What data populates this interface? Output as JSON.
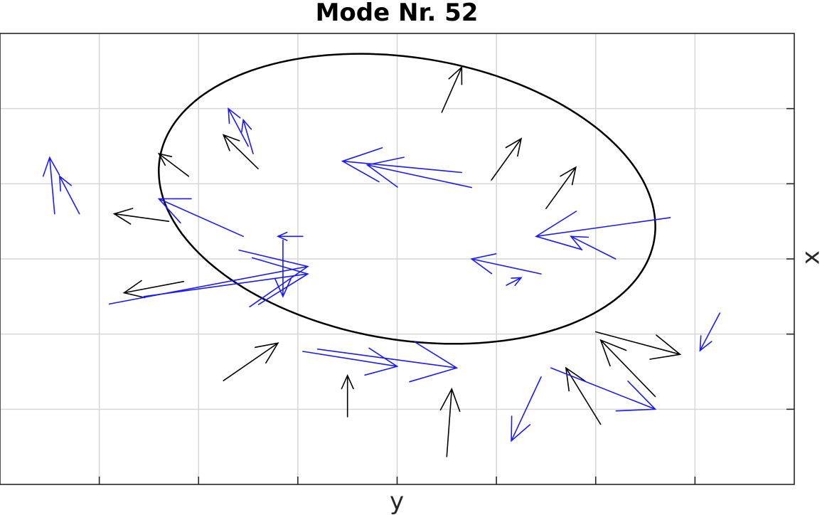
{
  "chart_data": {
    "type": "quiver",
    "title": "Mode Nr. 52",
    "xlabel": "y",
    "ylabel": "x",
    "ylabel_position": "right",
    "grid": true,
    "xlim": [
      0,
      8
    ],
    "ylim": [
      0,
      6
    ],
    "x_ticks": [
      0,
      1,
      2,
      3,
      4,
      5,
      6,
      7,
      8
    ],
    "y_ticks": [
      0,
      1,
      2,
      3,
      4,
      5,
      6
    ],
    "tick_labels_shown": false,
    "ellipse": {
      "center": [
        4.1,
        3.8
      ],
      "semi_axis_x": 2.56,
      "semi_axis_y": 1.85,
      "rotation_deg": -18,
      "color": "#000000"
    },
    "series": [
      {
        "name": "",
        "color": "#000000",
        "arrows": [
          [
            4.45,
            4.95,
            0.2,
            0.6
          ],
          [
            4.95,
            4.05,
            0.3,
            0.55
          ],
          [
            5.5,
            3.67,
            0.3,
            0.55
          ],
          [
            2.6,
            4.2,
            -0.35,
            0.45
          ],
          [
            1.9,
            4.1,
            -0.3,
            0.3
          ],
          [
            1.7,
            3.5,
            -0.55,
            0.1
          ],
          [
            1.85,
            2.7,
            -0.6,
            -0.15
          ],
          [
            2.25,
            1.38,
            0.55,
            0.5
          ],
          [
            3.5,
            0.9,
            0.0,
            0.55
          ],
          [
            4.5,
            0.37,
            0.05,
            0.9
          ],
          [
            6.05,
            0.8,
            -0.35,
            0.75
          ],
          [
            6.6,
            1.17,
            -0.55,
            0.75
          ],
          [
            6.0,
            2.03,
            0.85,
            -0.3
          ]
        ]
      },
      {
        "name": "",
        "color": "#1a1aff",
        "arrows": [
          [
            0.55,
            3.6,
            -0.05,
            0.75
          ],
          [
            0.8,
            3.6,
            -0.2,
            0.5
          ],
          [
            2.55,
            4.4,
            -0.1,
            0.45
          ],
          [
            2.5,
            4.5,
            -0.2,
            0.5
          ],
          [
            4.75,
            3.95,
            -1.05,
            0.3
          ],
          [
            4.65,
            4.15,
            -1.2,
            0.15
          ],
          [
            2.45,
            3.3,
            -0.85,
            0.5
          ],
          [
            3.05,
            3.3,
            -0.25,
            0.0
          ],
          [
            2.85,
            3.25,
            0.0,
            -0.75
          ],
          [
            1.1,
            2.4,
            2.0,
            0.5
          ],
          [
            1.45,
            2.5,
            1.65,
            0.3
          ],
          [
            3.05,
            1.77,
            0.95,
            -0.2
          ],
          [
            3.2,
            1.8,
            1.4,
            -0.25
          ],
          [
            6.75,
            3.55,
            -1.35,
            -0.25
          ],
          [
            6.2,
            3.0,
            -0.45,
            0.3
          ],
          [
            5.45,
            2.8,
            -0.7,
            0.2
          ],
          [
            5.1,
            2.65,
            0.15,
            0.1
          ],
          [
            7.25,
            2.28,
            -0.2,
            -0.5
          ],
          [
            5.55,
            1.55,
            1.05,
            -0.55
          ],
          [
            5.45,
            1.43,
            -0.3,
            -0.85
          ]
        ]
      }
    ]
  }
}
